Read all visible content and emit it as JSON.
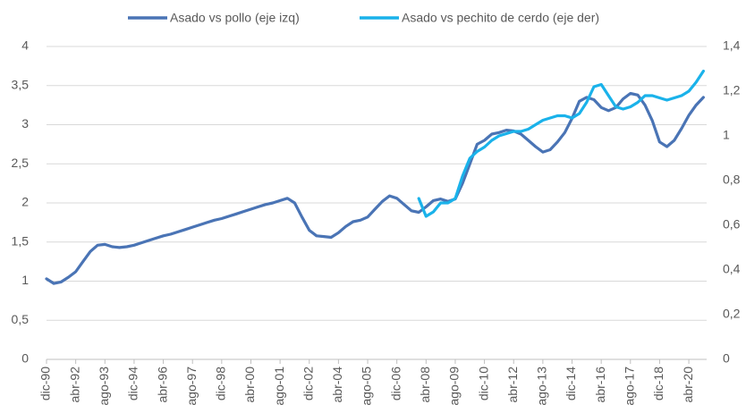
{
  "chart_data": {
    "type": "line",
    "categories": [
      "dic-90",
      null,
      null,
      null,
      "abr-92",
      null,
      null,
      null,
      "ago-93",
      null,
      null,
      null,
      "dic-94",
      null,
      null,
      null,
      "abr-96",
      null,
      null,
      null,
      "ago-97",
      null,
      null,
      null,
      "dic-98",
      null,
      null,
      null,
      "abr-00",
      null,
      null,
      null,
      "ago-01",
      null,
      null,
      null,
      "dic-02",
      null,
      null,
      null,
      "abr-04",
      null,
      null,
      null,
      "ago-05",
      null,
      null,
      null,
      "dic-06",
      null,
      null,
      null,
      "abr-08",
      null,
      null,
      null,
      "ago-09",
      null,
      null,
      null,
      "dic-10",
      null,
      null,
      null,
      "abr-12",
      null,
      null,
      null,
      "ago-13",
      null,
      null,
      null,
      "dic-14",
      null,
      null,
      null,
      "abr-16",
      null,
      null,
      null,
      "ago-17",
      null,
      null,
      null,
      "dic-18",
      null,
      null,
      null,
      "abr-20",
      null,
      null
    ],
    "series": [
      {
        "name": "Asado vs pollo (eje izq)",
        "color": "#4a74b5",
        "values": [
          1.03,
          0.97,
          0.99,
          1.05,
          1.12,
          1.25,
          1.38,
          1.46,
          1.47,
          1.44,
          1.43,
          1.44,
          1.46,
          1.49,
          1.52,
          1.55,
          1.58,
          1.6,
          1.63,
          1.66,
          1.69,
          1.72,
          1.75,
          1.78,
          1.8,
          1.83,
          1.86,
          1.89,
          1.92,
          1.95,
          1.98,
          2.0,
          2.03,
          2.06,
          2.0,
          1.82,
          1.65,
          1.58,
          1.57,
          1.56,
          1.62,
          1.7,
          1.76,
          1.78,
          1.82,
          1.92,
          2.02,
          2.09,
          2.06,
          1.98,
          1.9,
          1.88,
          1.95,
          2.03,
          2.05,
          2.02,
          2.05,
          2.25,
          2.5,
          2.75,
          2.8,
          2.88,
          2.9,
          2.93,
          2.92,
          2.88,
          2.8,
          2.72,
          2.65,
          2.68,
          2.78,
          2.9,
          3.08,
          3.3,
          3.35,
          3.32,
          3.22,
          3.18,
          3.22,
          3.33,
          3.4,
          3.38,
          3.25,
          3.05,
          2.78,
          2.72,
          2.8,
          2.95,
          3.12,
          3.25,
          3.35
        ]
      },
      {
        "name": "Asado vs pechito de cerdo (eje der)",
        "color": "#1ab2ea",
        "axis": "y2",
        "values": [
          null,
          null,
          null,
          null,
          null,
          null,
          null,
          null,
          null,
          null,
          null,
          null,
          null,
          null,
          null,
          null,
          null,
          null,
          null,
          null,
          null,
          null,
          null,
          null,
          null,
          null,
          null,
          null,
          null,
          null,
          null,
          null,
          null,
          null,
          null,
          null,
          null,
          null,
          null,
          null,
          null,
          null,
          null,
          null,
          null,
          null,
          null,
          null,
          null,
          null,
          null,
          0.72,
          0.64,
          0.66,
          0.7,
          0.7,
          0.72,
          0.82,
          0.9,
          0.93,
          0.95,
          0.98,
          1.0,
          1.01,
          1.02,
          1.02,
          1.03,
          1.05,
          1.07,
          1.08,
          1.09,
          1.09,
          1.08,
          1.1,
          1.15,
          1.22,
          1.23,
          1.18,
          1.13,
          1.12,
          1.13,
          1.15,
          1.18,
          1.18,
          1.17,
          1.16,
          1.17,
          1.18,
          1.2,
          1.24,
          1.29
        ]
      }
    ],
    "ylim": [
      0,
      4
    ],
    "yticks": [
      0,
      {
        "value": 0.5,
        "label": "0,5"
      },
      1,
      {
        "value": 1.5,
        "label": "1,5"
      },
      2,
      {
        "value": 2.5,
        "label": "2,5"
      },
      3,
      {
        "value": 3.5,
        "label": "3,5"
      },
      4
    ],
    "y2lim": [
      0,
      1.4
    ],
    "y2ticks": [
      0,
      {
        "value": 0.2,
        "label": "0,2"
      },
      {
        "value": 0.4,
        "label": "0,4"
      },
      {
        "value": 0.6,
        "label": "0,6"
      },
      {
        "value": 0.8,
        "label": "0,8"
      },
      1,
      {
        "value": 1.2,
        "label": "1,2"
      },
      {
        "value": 1.4,
        "label": "1,4"
      }
    ],
    "grid": true,
    "legend": "top"
  }
}
